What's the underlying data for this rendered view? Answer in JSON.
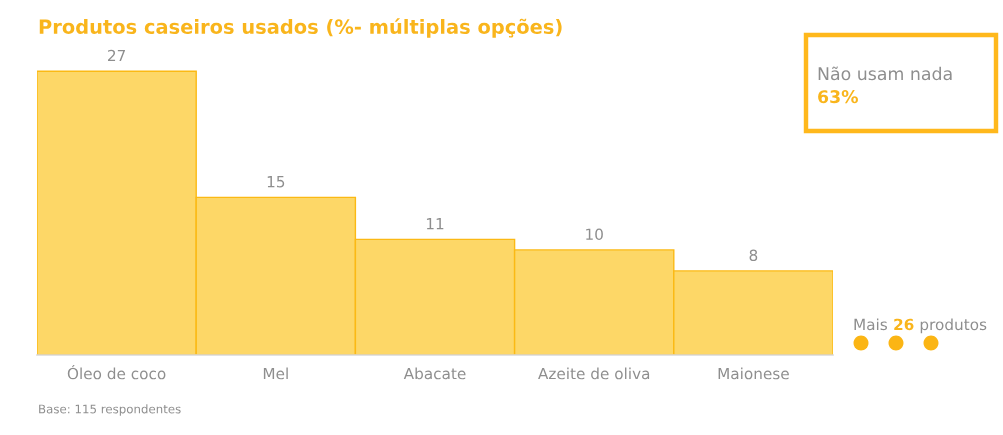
{
  "chart_data": {
    "type": "bar",
    "title": "Produtos caseiros usados (%- múltiplas opções)",
    "categories": [
      "Óleo de coco",
      "Mel",
      "Abacate",
      "Azeite de oliva",
      "Maionese"
    ],
    "values": [
      27,
      15,
      11,
      10,
      8
    ],
    "color": "#fdd767",
    "data_labels": true,
    "annotations": [
      "Não usam nada",
      "63%",
      "Mais 26 produtos",
      "Base: 115 respondentes"
    ]
  }
}
